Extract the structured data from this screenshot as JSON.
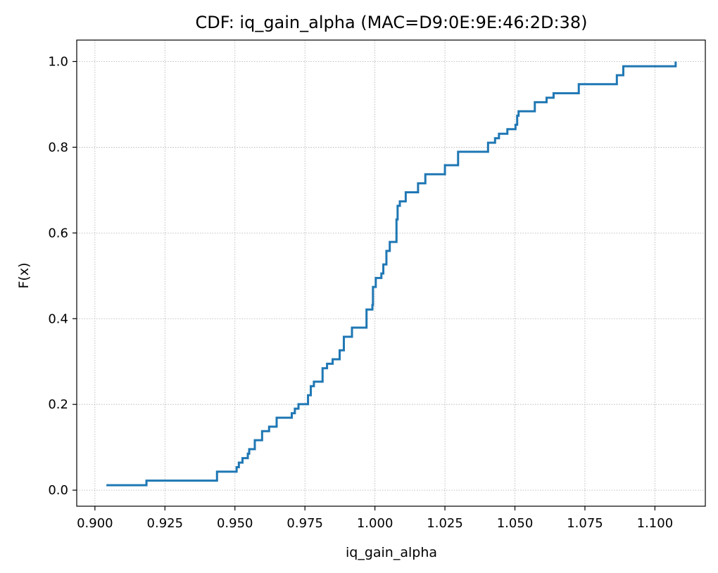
{
  "chart_data": {
    "type": "line",
    "title": "CDF: iq_gain_alpha (MAC=D9:0E:9E:46:2D:38)",
    "xlabel": "iq_gain_alpha",
    "ylabel": "F(x)",
    "xlim": [
      0.8935,
      1.118
    ],
    "ylim": [
      -0.0375,
      1.05
    ],
    "grid": true,
    "grid_style": "dotted",
    "line_color": "#1f77b4",
    "xticks": [
      "0.900",
      "0.925",
      "0.950",
      "0.975",
      "1.000",
      "1.025",
      "1.050",
      "1.075",
      "1.100"
    ],
    "yticks": [
      "0.0",
      "0.2",
      "0.4",
      "0.6",
      "0.8",
      "1.0"
    ],
    "series": [
      {
        "step": "post",
        "x": [
          0.9041,
          0.9184,
          0.9436,
          0.9506,
          0.9514,
          0.9527,
          0.9546,
          0.9551,
          0.9571,
          0.9597,
          0.9622,
          0.9649,
          0.9703,
          0.9714,
          0.9727,
          0.9761,
          0.9771,
          0.9782,
          0.9813,
          0.9829,
          0.9849,
          0.9874,
          0.9889,
          0.9918,
          0.997,
          0.9991,
          0.9993,
          1.0003,
          1.0023,
          1.003,
          1.0041,
          1.0053,
          1.0077,
          1.0081,
          1.0089,
          1.011,
          1.0154,
          1.018,
          1.025,
          1.0297,
          1.0404,
          1.0429,
          1.0443,
          1.0473,
          1.0502,
          1.0508,
          1.0513,
          1.0571,
          1.0613,
          1.0638,
          1.0728,
          1.0864,
          1.0887,
          1.1074
        ],
        "y": [
          0.0116,
          0.0221,
          0.0431,
          0.0536,
          0.0641,
          0.0746,
          0.0851,
          0.0955,
          0.1165,
          0.1375,
          0.148,
          0.169,
          0.1795,
          0.19,
          0.2005,
          0.2215,
          0.2425,
          0.253,
          0.2843,
          0.2948,
          0.3053,
          0.3263,
          0.3578,
          0.3792,
          0.4214,
          0.432,
          0.474,
          0.495,
          0.5055,
          0.5265,
          0.5581,
          0.5791,
          0.6316,
          0.6633,
          0.6738,
          0.6948,
          0.7159,
          0.7369,
          0.758,
          0.7895,
          0.8105,
          0.821,
          0.8315,
          0.842,
          0.8525,
          0.8735,
          0.884,
          0.905,
          0.9155,
          0.926,
          0.947,
          0.968,
          0.989,
          1.0
        ]
      }
    ]
  }
}
